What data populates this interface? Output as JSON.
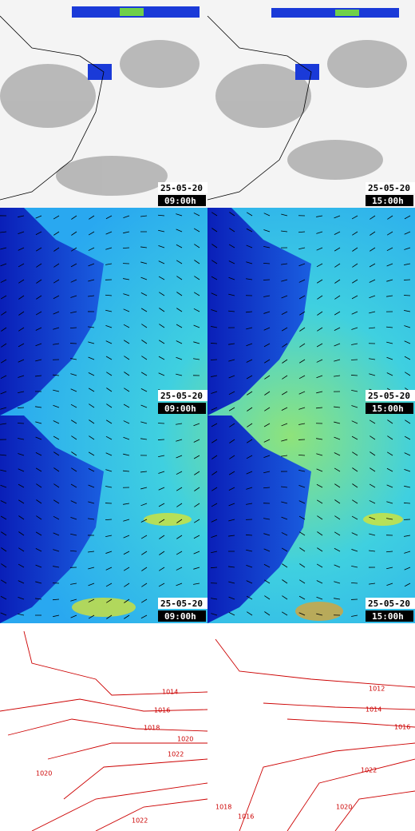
{
  "panels": [
    {
      "date": "25-05-20",
      "time": "09:00h"
    },
    {
      "date": "25-05-20",
      "time": "15:00h"
    },
    {
      "date": "25-05-20",
      "time": "09:00h"
    },
    {
      "date": "25-05-20",
      "time": "15:00h"
    },
    {
      "date": "25-05-20",
      "time": "09:00h"
    },
    {
      "date": "25-05-20",
      "time": "15:00h"
    }
  ],
  "isobars_left": [
    "1014",
    "1016",
    "1018",
    "1020",
    "1022",
    "1020",
    "1022"
  ],
  "isobars_right": [
    "1012",
    "1014",
    "1016",
    "1022",
    "1020",
    "1018",
    "1016"
  ]
}
